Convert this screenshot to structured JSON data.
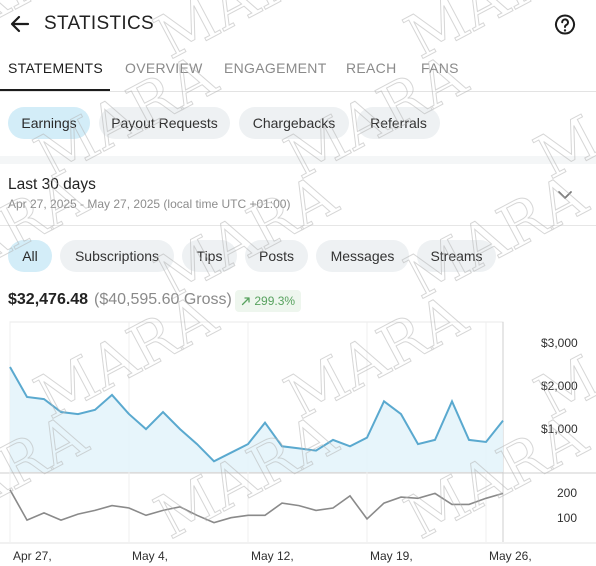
{
  "header": {
    "title": "STATISTICS",
    "back_icon": "arrow-left-icon",
    "help_icon": "help-circle-icon"
  },
  "tabs": [
    {
      "label": "STATEMENTS",
      "active": true
    },
    {
      "label": "OVERVIEW",
      "active": false
    },
    {
      "label": "ENGAGEMENT",
      "active": false
    },
    {
      "label": "REACH",
      "active": false
    },
    {
      "label": "FANS",
      "active": false
    }
  ],
  "statement_types": [
    {
      "label": "Earnings",
      "active": true
    },
    {
      "label": "Payout Requests",
      "active": false
    },
    {
      "label": "Chargebacks",
      "active": false
    },
    {
      "label": "Referrals",
      "active": false
    }
  ],
  "period": {
    "title": "Last 30 days",
    "range": "Apr 27, 2025 - May 27, 2025 (local time UTC +01:00)",
    "chevron_icon": "chevron-down-icon"
  },
  "filters": [
    {
      "label": "All",
      "active": true
    },
    {
      "label": "Subscriptions",
      "active": false
    },
    {
      "label": "Tips",
      "active": false
    },
    {
      "label": "Posts",
      "active": false
    },
    {
      "label": "Messages",
      "active": false
    },
    {
      "label": "Streams",
      "active": false
    }
  ],
  "summary": {
    "net": "$32,476.48",
    "gross": "($40,595.60 Gross)",
    "change": "299.3%",
    "change_icon": "trend-up-icon"
  },
  "watermark": {
    "text": "MARA"
  },
  "colors": {
    "accent": "#5aa9cf",
    "accent_fill": "#e4f4fb",
    "count_line": "#8a8a8a",
    "positive": "#58a25f"
  },
  "chart_data": {
    "type": "line",
    "x_tick_labels": [
      "Apr 27,",
      "May 4,",
      "May 12,",
      "May 19,",
      "May 26,"
    ],
    "series": [
      {
        "y_axis": "top",
        "unit": "$",
        "ylim": [
          0,
          3500
        ],
        "y_tick_labels": [
          "$3,000",
          "$2,000",
          "$1,000"
        ],
        "y_ticks": [
          3000,
          2000,
          1000
        ],
        "values": [
          2450,
          1750,
          1700,
          1400,
          1350,
          1450,
          1800,
          1350,
          1000,
          1400,
          1000,
          650,
          250,
          450,
          650,
          1150,
          600,
          550,
          500,
          750,
          600,
          800,
          1650,
          1350,
          650,
          750,
          1650,
          750,
          700,
          1200
        ]
      },
      {
        "y_axis": "bottom",
        "ylim": [
          0,
          280
        ],
        "y_tick_labels": [
          "200",
          "100"
        ],
        "y_ticks": [
          200,
          100
        ],
        "values": [
          215,
          90,
          120,
          90,
          115,
          130,
          150,
          140,
          110,
          130,
          145,
          110,
          80,
          100,
          110,
          110,
          160,
          150,
          130,
          140,
          190,
          95,
          160,
          185,
          180,
          200,
          155,
          155,
          180,
          200
        ]
      }
    ]
  }
}
